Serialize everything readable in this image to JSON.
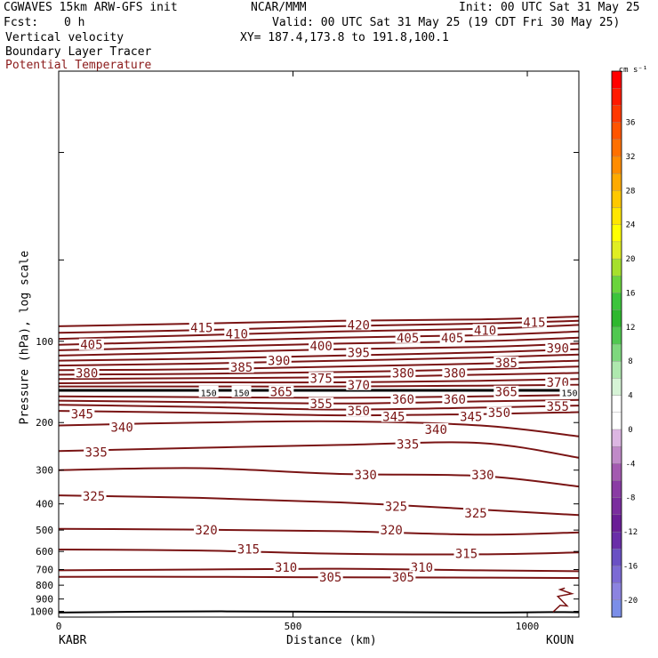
{
  "header": {
    "model": "CGWAVES 15km ARW-GFS init",
    "org": "NCAR/MMM",
    "init": "Init: 00 UTC Sat 31 May 25",
    "fcst_label": "Fcst:",
    "fcst_value": "0 h",
    "valid": "Valid: 00 UTC Sat 31 May 25 (19 CDT Fri 30 May 25)",
    "field1": "Vertical velocity",
    "xy": "XY= 187.4,173.8 to 191.8,100.1",
    "field2": "Boundary Layer Tracer",
    "field3": "Potential Temperature",
    "field3_color": "#8b1a1a"
  },
  "axes": {
    "ylabel": "Pressure (hPa), log scale",
    "xlabel": "Distance (km)",
    "left_station": "KABR",
    "right_station": "KOUN"
  },
  "colorbar": {
    "units": "cm s⁻¹",
    "levels": [
      -22,
      -20,
      -18,
      -16,
      -14,
      -12,
      -10,
      -8,
      -6,
      -4,
      -2,
      0,
      2,
      4,
      6,
      8,
      10,
      12,
      14,
      16,
      18,
      20,
      22,
      24,
      26,
      28,
      30,
      32,
      34,
      36,
      38,
      40
    ],
    "labels": [
      "-20",
      "-16",
      "-12",
      "-8",
      "-4",
      "0",
      "4",
      "8",
      "12",
      "16",
      "20",
      "24",
      "28",
      "32",
      "36"
    ],
    "label_values": [
      -20,
      -16,
      -12,
      -8,
      -4,
      0,
      4,
      8,
      12,
      16,
      20,
      24,
      28,
      32,
      36
    ],
    "colors": [
      "#7b8ee8",
      "#8c83e0",
      "#7c6ad4",
      "#6a50c4",
      "#6a2ea8",
      "#6a1e96",
      "#7a2d9e",
      "#8a3ca4",
      "#a35ab0",
      "#c08ac8",
      "#dcb6e2",
      "#ffffff",
      "#ffffff",
      "#d6f3d6",
      "#aee8ae",
      "#7ed87e",
      "#50c850",
      "#2eb82e",
      "#3cc43c",
      "#6ad43c",
      "#a6e02c",
      "#e0ee22",
      "#ffff00",
      "#ffe600",
      "#ffc800",
      "#ffaa00",
      "#ff8c00",
      "#ff7000",
      "#ff5400",
      "#ff3800",
      "#ff1a00",
      "#ff0000"
    ]
  },
  "chart_data": {
    "type": "contour",
    "title": "",
    "xlabel": "Distance (km)",
    "ylabel": "Pressure (hPa), log scale",
    "x_ticks": [
      0,
      500,
      1000
    ],
    "xlim": [
      0,
      1110
    ],
    "y_scale": "log",
    "y_ticks": [
      100,
      200,
      300,
      400,
      500,
      600,
      700,
      800,
      900,
      1000
    ],
    "ylim": [
      1050,
      10
    ],
    "contour_color": "#7a1414",
    "contours": [
      {
        "level": "415",
        "x": [
          0,
          300,
          600,
          900,
          1110
        ],
        "p": [
          88,
          86,
          84,
          83,
          81
        ]
      },
      {
        "level": "",
        "x": [
          0,
          300,
          600,
          900,
          1110
        ],
        "p": [
          93,
          91,
          88,
          86,
          84
        ]
      },
      {
        "level": "420",
        "x": [
          0,
          300,
          600,
          900,
          1110
        ],
        "p": [
          98,
          95,
          92,
          90,
          87
        ]
      },
      {
        "level": "410",
        "x": [
          0,
          300,
          600,
          900,
          1110
        ],
        "p": [
          103,
          100,
          97,
          95,
          92
        ]
      },
      {
        "level": "405",
        "x": [
          0,
          300,
          600,
          900,
          1110
        ],
        "p": [
          108,
          105,
          102,
          100,
          97
        ]
      },
      {
        "level": "400",
        "x": [
          0,
          300,
          600,
          900,
          1110
        ],
        "p": [
          113,
          110,
          107,
          105,
          102
        ]
      },
      {
        "level": "395",
        "x": [
          0,
          300,
          600,
          900,
          1110
        ],
        "p": [
          118,
          116,
          113,
          110,
          107
        ]
      },
      {
        "level": "390",
        "x": [
          0,
          300,
          600,
          900,
          1110
        ],
        "p": [
          123,
          121,
          118,
          115,
          112
        ]
      },
      {
        "level": "385",
        "x": [
          0,
          300,
          600,
          900,
          1110
        ],
        "p": [
          128,
          127,
          124,
          121,
          118
        ]
      },
      {
        "level": "380",
        "x": [
          0,
          300,
          600,
          900,
          1110
        ],
        "p": [
          133,
          132,
          130,
          127,
          124
        ]
      },
      {
        "level": "375",
        "x": [
          0,
          300,
          600,
          900,
          1110
        ],
        "p": [
          138,
          137,
          136,
          133,
          131
        ]
      },
      {
        "level": "370",
        "x": [
          0,
          300,
          600,
          900,
          1110
        ],
        "p": [
          143,
          142,
          142,
          140,
          138
        ]
      },
      {
        "level": "365",
        "x": [
          0,
          300,
          600,
          900,
          1110
        ],
        "p": [
          147,
          147,
          147,
          146,
          145
        ]
      },
      {
        "level": "360",
        "x": [
          0,
          300,
          600,
          900,
          1110
        ],
        "p": [
          160,
          161,
          162,
          160,
          158
        ]
      },
      {
        "level": "355",
        "x": [
          0,
          300,
          600,
          900,
          1110
        ],
        "p": [
          166,
          168,
          170,
          167,
          165
        ]
      },
      {
        "level": "350",
        "x": [
          0,
          300,
          600,
          900,
          1110
        ],
        "p": [
          172,
          175,
          179,
          176,
          173
        ]
      },
      {
        "level": "345",
        "x": [
          0,
          300,
          600,
          900,
          1110
        ],
        "p": [
          181,
          184,
          188,
          186,
          183
        ]
      },
      {
        "level": "340",
        "x": [
          0,
          300,
          600,
          900,
          1110
        ],
        "p": [
          205,
          200,
          198,
          205,
          225
        ]
      },
      {
        "level": "335",
        "x": [
          0,
          300,
          600,
          900,
          1110
        ],
        "p": [
          255,
          248,
          242,
          238,
          270
        ]
      },
      {
        "level": "330",
        "x": [
          0,
          300,
          600,
          900,
          1110
        ],
        "p": [
          300,
          295,
          310,
          315,
          345
        ]
      },
      {
        "level": "325",
        "x": [
          0,
          300,
          600,
          900,
          1110
        ],
        "p": [
          372,
          380,
          395,
          420,
          440
        ]
      },
      {
        "level": "320",
        "x": [
          0,
          300,
          600,
          900,
          1110
        ],
        "p": [
          495,
          498,
          505,
          520,
          510
        ]
      },
      {
        "level": "315",
        "x": [
          0,
          300,
          600,
          900,
          1110
        ],
        "p": [
          590,
          595,
          612,
          615,
          605
        ]
      },
      {
        "level": "310",
        "x": [
          0,
          300,
          600,
          900,
          1110
        ],
        "p": [
          705,
          700,
          695,
          705,
          710
        ]
      },
      {
        "level": "305",
        "x": [
          0,
          300,
          600,
          900,
          1110
        ],
        "p": [
          745,
          745,
          748,
          750,
          752
        ]
      }
    ],
    "labels": [
      {
        "text": "415",
        "x": 305,
        "p": 89
      },
      {
        "text": "420",
        "x": 640,
        "p": 87
      },
      {
        "text": "415",
        "x": 1015,
        "p": 85
      },
      {
        "text": "410",
        "x": 380,
        "p": 94
      },
      {
        "text": "410",
        "x": 910,
        "p": 91
      },
      {
        "text": "405",
        "x": 70,
        "p": 103
      },
      {
        "text": "405",
        "x": 745,
        "p": 97
      },
      {
        "text": "405",
        "x": 840,
        "p": 97
      },
      {
        "text": "400",
        "x": 560,
        "p": 104
      },
      {
        "text": "395",
        "x": 640,
        "p": 110
      },
      {
        "text": "390",
        "x": 470,
        "p": 118
      },
      {
        "text": "390",
        "x": 1065,
        "p": 106
      },
      {
        "text": "385",
        "x": 390,
        "p": 125
      },
      {
        "text": "385",
        "x": 955,
        "p": 120
      },
      {
        "text": "380",
        "x": 60,
        "p": 131
      },
      {
        "text": "380",
        "x": 735,
        "p": 131
      },
      {
        "text": "380",
        "x": 845,
        "p": 131
      },
      {
        "text": "375",
        "x": 560,
        "p": 137
      },
      {
        "text": "370",
        "x": 640,
        "p": 145
      },
      {
        "text": "370",
        "x": 1065,
        "p": 142
      },
      {
        "text": "365",
        "x": 475,
        "p": 154
      },
      {
        "text": "365",
        "x": 955,
        "p": 154
      },
      {
        "text": "150",
        "x": 320,
        "p": 154
      },
      {
        "text": "150",
        "x": 390,
        "p": 154
      },
      {
        "text": "150",
        "x": 1090,
        "p": 154
      },
      {
        "text": "360",
        "x": 735,
        "p": 164
      },
      {
        "text": "360",
        "x": 845,
        "p": 164
      },
      {
        "text": "355",
        "x": 560,
        "p": 170
      },
      {
        "text": "355",
        "x": 1065,
        "p": 174
      },
      {
        "text": "350",
        "x": 640,
        "p": 181
      },
      {
        "text": "350",
        "x": 940,
        "p": 184
      },
      {
        "text": "345",
        "x": 50,
        "p": 186
      },
      {
        "text": "345",
        "x": 715,
        "p": 190
      },
      {
        "text": "345",
        "x": 880,
        "p": 190
      },
      {
        "text": "340",
        "x": 135,
        "p": 208
      },
      {
        "text": "340",
        "x": 805,
        "p": 212
      },
      {
        "text": "335",
        "x": 80,
        "p": 257
      },
      {
        "text": "335",
        "x": 745,
        "p": 240
      },
      {
        "text": "330",
        "x": 655,
        "p": 312
      },
      {
        "text": "330",
        "x": 905,
        "p": 312
      },
      {
        "text": "325",
        "x": 75,
        "p": 375
      },
      {
        "text": "325",
        "x": 720,
        "p": 408
      },
      {
        "text": "325",
        "x": 890,
        "p": 432
      },
      {
        "text": "320",
        "x": 315,
        "p": 500
      },
      {
        "text": "320",
        "x": 710,
        "p": 500
      },
      {
        "text": "315",
        "x": 405,
        "p": 588
      },
      {
        "text": "315",
        "x": 870,
        "p": 610
      },
      {
        "text": "310",
        "x": 485,
        "p": 688
      },
      {
        "text": "310",
        "x": 775,
        "p": 688
      },
      {
        "text": "305",
        "x": 580,
        "p": 746
      },
      {
        "text": "305",
        "x": 735,
        "p": 746
      }
    ],
    "tropopause": {
      "p": 152,
      "color": "#000000"
    },
    "tracer_surface": {
      "x": [
        0,
        300,
        600,
        900,
        1050,
        1110
      ],
      "p": [
        1010,
        1000,
        1004,
        1010,
        1006,
        1008
      ]
    },
    "pbl_squiggle": {
      "x": [
        1055,
        1070,
        1085,
        1065,
        1095,
        1070,
        1080
      ],
      "p": [
        1005,
        950,
        955,
        880,
        860,
        830,
        820
      ]
    }
  }
}
